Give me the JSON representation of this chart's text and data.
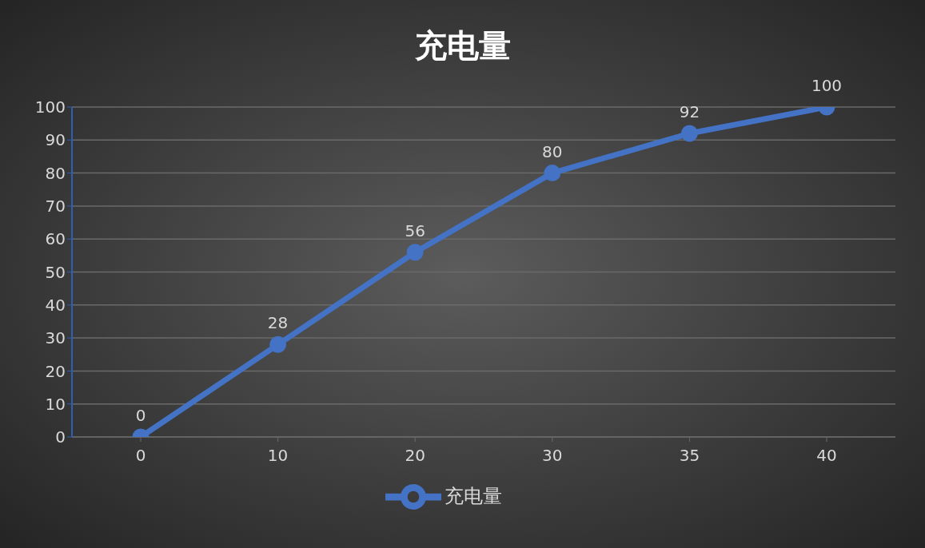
{
  "chart_data": {
    "type": "line",
    "title": "充电量",
    "categories": [
      "0",
      "10",
      "20",
      "30",
      "35",
      "40"
    ],
    "series": [
      {
        "name": "充电量",
        "color": "#4472c4",
        "values": [
          0,
          28,
          56,
          80,
          92,
          100
        ]
      }
    ],
    "ylim": [
      0,
      100
    ],
    "yticks": [
      0,
      10,
      20,
      30,
      40,
      50,
      60,
      70,
      80,
      90,
      100
    ],
    "grid": "y",
    "legend": "bottom",
    "marker": "circle",
    "data_labels": true
  }
}
